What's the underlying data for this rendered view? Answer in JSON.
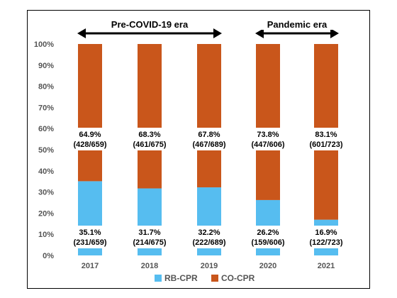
{
  "chart_data": {
    "type": "bar",
    "stacked": true,
    "categories": [
      "2017",
      "2018",
      "2019",
      "2020",
      "2021"
    ],
    "series": [
      {
        "name": "RB-CPR",
        "color": "#56bdf0",
        "values": [
          35.1,
          31.7,
          32.2,
          26.2,
          16.9
        ],
        "labels": [
          "35.1%",
          "31.7%",
          "32.2%",
          "26.2%",
          "16.9%"
        ],
        "counts": [
          "(231/659)",
          "(214/675)",
          "(222/689)",
          "(159/606)",
          "(122/723)"
        ]
      },
      {
        "name": "CO-CPR",
        "color": "#c9561b",
        "values": [
          64.9,
          68.3,
          67.8,
          73.8,
          83.1
        ],
        "labels": [
          "64.9%",
          "68.3%",
          "67.8%",
          "73.8%",
          "83.1%"
        ],
        "counts": [
          "(428/659)",
          "(461/675)",
          "(467/689)",
          "(447/606)",
          "(601/723)"
        ]
      }
    ],
    "ylim": [
      0,
      100
    ],
    "yticks": [
      "0%",
      "10%",
      "20%",
      "30%",
      "40%",
      "50%",
      "60%",
      "70%",
      "80%",
      "90%",
      "100%"
    ],
    "eras": [
      {
        "label": "Pre-COVID-19 era",
        "from": 0,
        "to": 2
      },
      {
        "label": "Pandemic era",
        "from": 3,
        "to": 4
      }
    ],
    "legend_position": "bottom",
    "grid": false
  }
}
